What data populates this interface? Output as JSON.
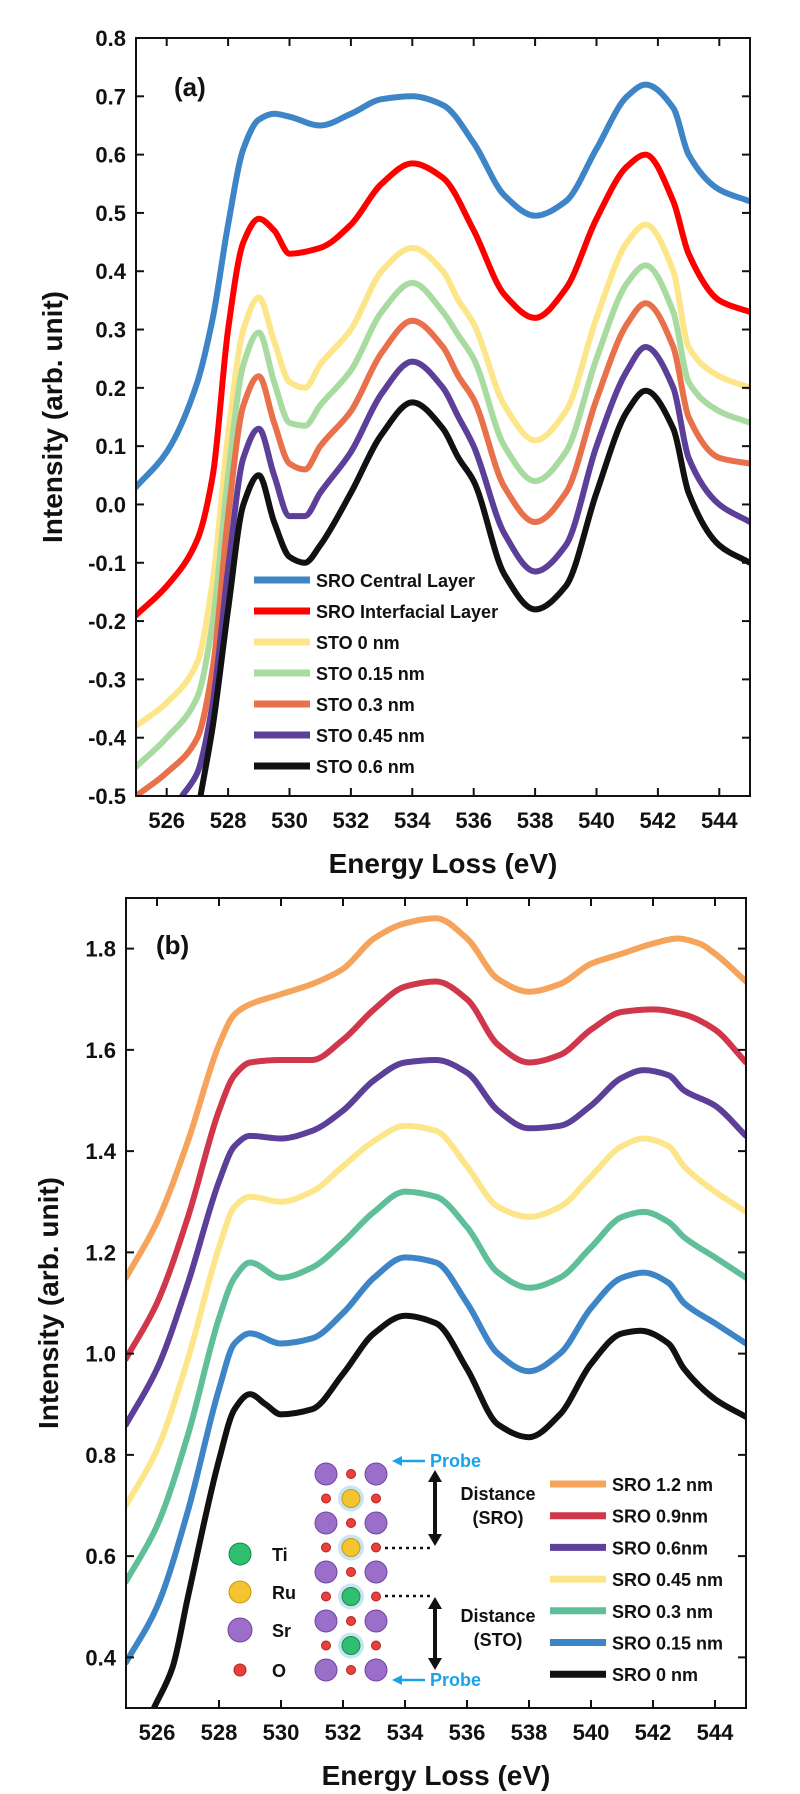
{
  "chart_data": [
    {
      "panel": "(a)",
      "type": "line",
      "xlabel": "Energy Loss (eV)",
      "ylabel": "Intensity (arb. unit)",
      "xlim": [
        525,
        545
      ],
      "ylim": [
        -0.5,
        0.8
      ],
      "xticks": [
        526,
        528,
        530,
        532,
        534,
        536,
        538,
        540,
        542,
        544
      ],
      "yticks": [
        -0.5,
        -0.4,
        -0.3,
        -0.2,
        -0.1,
        0.0,
        0.1,
        0.2,
        0.3,
        0.4,
        0.5,
        0.6,
        0.7,
        0.8
      ],
      "ytick_labels": [
        "-0.5",
        "-0.4",
        "-0.3",
        "-0.2",
        "-0.1",
        "0.0",
        "0.1",
        "0.2",
        "0.3",
        "0.4",
        "0.5",
        "0.6",
        "0.7",
        "0.8"
      ],
      "legend_position": "lower-middle",
      "series": [
        {
          "name": "SRO Central Layer",
          "color": "#3d85c6",
          "x": [
            525,
            526,
            527,
            527.5,
            528,
            528.5,
            529,
            529.5,
            530,
            531,
            532,
            533,
            534,
            535,
            536,
            537,
            538,
            539,
            540,
            541,
            541.6,
            542.5,
            543,
            544,
            545
          ],
          "y": [
            0.03,
            0.09,
            0.21,
            0.32,
            0.48,
            0.61,
            0.66,
            0.67,
            0.665,
            0.65,
            0.67,
            0.695,
            0.7,
            0.685,
            0.62,
            0.53,
            0.495,
            0.52,
            0.61,
            0.7,
            0.72,
            0.68,
            0.6,
            0.54,
            0.52
          ]
        },
        {
          "name": "SRO Interfacial Layer",
          "color": "#ff0000",
          "x": [
            525,
            526,
            527,
            527.5,
            528,
            528.5,
            529,
            529.5,
            530,
            531,
            532,
            533,
            534,
            535,
            536,
            537,
            538,
            539,
            540,
            541,
            541.6,
            542.5,
            543,
            544,
            545
          ],
          "y": [
            -0.19,
            -0.14,
            -0.06,
            0.05,
            0.3,
            0.45,
            0.49,
            0.47,
            0.43,
            0.44,
            0.48,
            0.55,
            0.585,
            0.56,
            0.47,
            0.36,
            0.32,
            0.37,
            0.49,
            0.58,
            0.6,
            0.52,
            0.43,
            0.35,
            0.33
          ]
        },
        {
          "name": "STO 0 nm",
          "color": "#fde68a",
          "x": [
            525,
            526,
            527,
            527.5,
            528,
            528.5,
            529,
            529.5,
            530,
            530.5,
            531,
            532,
            533,
            534,
            535,
            535.5,
            536,
            537,
            538,
            539,
            540,
            541,
            541.6,
            542.5,
            543,
            544,
            545
          ],
          "y": [
            -0.38,
            -0.34,
            -0.27,
            -0.13,
            0.12,
            0.3,
            0.355,
            0.28,
            0.21,
            0.2,
            0.24,
            0.3,
            0.4,
            0.44,
            0.4,
            0.35,
            0.31,
            0.17,
            0.11,
            0.16,
            0.32,
            0.45,
            0.48,
            0.4,
            0.27,
            0.22,
            0.2
          ]
        },
        {
          "name": "STO 0.15 nm",
          "color": "#a8dba0",
          "x": [
            525,
            526,
            527,
            527.5,
            528,
            528.5,
            529,
            529.5,
            530,
            530.5,
            531,
            532,
            533,
            534,
            535,
            535.5,
            536,
            537,
            538,
            539,
            540,
            541,
            541.6,
            542.5,
            543,
            544,
            545
          ],
          "y": [
            -0.45,
            -0.4,
            -0.33,
            -0.2,
            0.05,
            0.24,
            0.295,
            0.21,
            0.14,
            0.135,
            0.17,
            0.23,
            0.33,
            0.38,
            0.33,
            0.29,
            0.25,
            0.1,
            0.04,
            0.09,
            0.25,
            0.38,
            0.41,
            0.33,
            0.21,
            0.16,
            0.14
          ]
        },
        {
          "name": "STO 0.3 nm",
          "color": "#e8704a",
          "x": [
            525,
            526,
            527,
            527.5,
            528,
            528.5,
            529,
            529.5,
            530,
            530.5,
            531,
            532,
            533,
            534,
            535,
            535.5,
            536,
            537,
            538,
            539,
            540,
            541,
            541.6,
            542.5,
            543,
            544,
            545
          ],
          "y": [
            -0.5,
            -0.46,
            -0.4,
            -0.28,
            -0.02,
            0.17,
            0.22,
            0.14,
            0.07,
            0.06,
            0.1,
            0.16,
            0.26,
            0.315,
            0.27,
            0.22,
            0.18,
            0.03,
            -0.03,
            0.02,
            0.18,
            0.31,
            0.345,
            0.27,
            0.15,
            0.08,
            0.07
          ]
        },
        {
          "name": "STO 0.45 nm",
          "color": "#5b3f98",
          "x": [
            526.5,
            527,
            527.5,
            528,
            528.5,
            529,
            529.5,
            530,
            530.5,
            531,
            532,
            533,
            534,
            535,
            535.5,
            536,
            537,
            538,
            539,
            540,
            541,
            541.6,
            542.5,
            543,
            544,
            545
          ],
          "y": [
            -0.5,
            -0.46,
            -0.34,
            -0.11,
            0.08,
            0.13,
            0.05,
            -0.02,
            -0.02,
            0.02,
            0.09,
            0.19,
            0.245,
            0.2,
            0.15,
            0.1,
            -0.05,
            -0.115,
            -0.07,
            0.1,
            0.23,
            0.27,
            0.2,
            0.08,
            0.0,
            -0.03
          ]
        },
        {
          "name": "STO 0.6 nm",
          "color": "#111111",
          "x": [
            527.1,
            527.5,
            528,
            528.5,
            529,
            529.5,
            530,
            530.5,
            531,
            532,
            533,
            534,
            535,
            535.5,
            536,
            537,
            538,
            539,
            540,
            541,
            541.6,
            542.5,
            543,
            544,
            545
          ],
          "y": [
            -0.5,
            -0.38,
            -0.18,
            0.0,
            0.05,
            -0.03,
            -0.09,
            -0.1,
            -0.07,
            0.02,
            0.12,
            0.175,
            0.13,
            0.08,
            0.04,
            -0.12,
            -0.18,
            -0.14,
            0.02,
            0.16,
            0.195,
            0.13,
            0.02,
            -0.07,
            -0.1
          ]
        }
      ]
    },
    {
      "panel": "(b)",
      "type": "line",
      "xlabel": "Energy Loss (eV)",
      "ylabel": "Intensity (arb. unit)",
      "xlim": [
        525,
        545
      ],
      "ylim": [
        0.3,
        1.9
      ],
      "xticks": [
        526,
        528,
        530,
        532,
        534,
        536,
        538,
        540,
        542,
        544
      ],
      "yticks": [
        0.4,
        0.6,
        0.8,
        1.0,
        1.2,
        1.4,
        1.6,
        1.8
      ],
      "ytick_labels": [
        "0.4",
        "0.6",
        "0.8",
        "1.0",
        "1.2",
        "1.4",
        "1.6",
        "1.8"
      ],
      "legend_position": "bottom-right",
      "series": [
        {
          "name": "SRO 1.2 nm",
          "color": "#f6a35b",
          "x": [
            525,
            526,
            527,
            528,
            528.5,
            529,
            530,
            531,
            532,
            533,
            534,
            535,
            536,
            537,
            538,
            539,
            540,
            541,
            542,
            542.8,
            543.5,
            544,
            545
          ],
          "y": [
            1.15,
            1.26,
            1.42,
            1.61,
            1.67,
            1.69,
            1.71,
            1.73,
            1.76,
            1.82,
            1.85,
            1.86,
            1.82,
            1.74,
            1.715,
            1.73,
            1.77,
            1.79,
            1.81,
            1.82,
            1.81,
            1.79,
            1.735
          ]
        },
        {
          "name": "SRO 0.9nm",
          "color": "#d0374a",
          "x": [
            525,
            526,
            527,
            528,
            528.5,
            529,
            530,
            531,
            532,
            533,
            534,
            535,
            536,
            537,
            538,
            539,
            540,
            541,
            542,
            543,
            544,
            545
          ],
          "y": [
            0.99,
            1.1,
            1.27,
            1.48,
            1.55,
            1.575,
            1.58,
            1.58,
            1.62,
            1.68,
            1.725,
            1.735,
            1.7,
            1.61,
            1.575,
            1.59,
            1.64,
            1.675,
            1.68,
            1.67,
            1.64,
            1.575
          ]
        },
        {
          "name": "SRO 0.6nm",
          "color": "#5b3f98",
          "x": [
            525,
            526,
            527,
            528,
            528.5,
            529,
            530,
            531,
            532,
            533,
            534,
            535,
            536,
            537,
            538,
            539,
            540,
            541,
            541.7,
            542.5,
            543,
            544,
            545
          ],
          "y": [
            0.86,
            0.97,
            1.14,
            1.34,
            1.41,
            1.43,
            1.425,
            1.44,
            1.48,
            1.54,
            1.575,
            1.58,
            1.555,
            1.48,
            1.445,
            1.45,
            1.49,
            1.545,
            1.56,
            1.55,
            1.52,
            1.49,
            1.43
          ]
        },
        {
          "name": "SRO 0.45 nm",
          "color": "#fde68a",
          "x": [
            525,
            526,
            527,
            528,
            528.5,
            529,
            530,
            531,
            532,
            533,
            534,
            535,
            536,
            537,
            538,
            539,
            540,
            541,
            541.7,
            542.5,
            543,
            544,
            545
          ],
          "y": [
            0.7,
            0.81,
            0.99,
            1.21,
            1.29,
            1.31,
            1.3,
            1.32,
            1.37,
            1.42,
            1.45,
            1.44,
            1.37,
            1.29,
            1.27,
            1.29,
            1.35,
            1.41,
            1.425,
            1.41,
            1.37,
            1.32,
            1.28
          ]
        },
        {
          "name": "SRO 0.3 nm",
          "color": "#5fbf99",
          "x": [
            525,
            526,
            527,
            528,
            528.5,
            529,
            530,
            531,
            532,
            533,
            534,
            535,
            536,
            537,
            538,
            539,
            540,
            541,
            541.7,
            542.5,
            543,
            544,
            545
          ],
          "y": [
            0.55,
            0.66,
            0.84,
            1.07,
            1.15,
            1.18,
            1.15,
            1.17,
            1.22,
            1.28,
            1.32,
            1.31,
            1.25,
            1.16,
            1.13,
            1.15,
            1.21,
            1.27,
            1.28,
            1.26,
            1.23,
            1.19,
            1.15
          ]
        },
        {
          "name": "SRO 0.15 nm",
          "color": "#3d85c6",
          "x": [
            525,
            526,
            527,
            528,
            528.5,
            529,
            530,
            531,
            532,
            533,
            534,
            535,
            536,
            537,
            538,
            539,
            540,
            541,
            541.7,
            542.5,
            543,
            544,
            545
          ],
          "y": [
            0.39,
            0.5,
            0.69,
            0.93,
            1.02,
            1.04,
            1.02,
            1.03,
            1.08,
            1.15,
            1.19,
            1.18,
            1.1,
            1.0,
            0.965,
            1.0,
            1.09,
            1.15,
            1.16,
            1.14,
            1.1,
            1.06,
            1.02
          ]
        },
        {
          "name": "SRO 0 nm",
          "color": "#111111",
          "x": [
            525.9,
            526.5,
            527,
            528,
            528.5,
            529,
            529.5,
            530,
            531,
            532,
            533,
            534,
            535,
            536,
            537,
            538,
            539,
            540,
            541,
            541.6,
            542.5,
            543,
            544,
            545
          ],
          "y": [
            0.3,
            0.38,
            0.52,
            0.79,
            0.89,
            0.92,
            0.9,
            0.88,
            0.89,
            0.96,
            1.04,
            1.075,
            1.06,
            0.97,
            0.86,
            0.835,
            0.88,
            0.98,
            1.04,
            1.045,
            1.02,
            0.97,
            0.91,
            0.875
          ]
        }
      ]
    }
  ],
  "inset": {
    "probe_top": "Probe",
    "probe_bottom": "Probe",
    "distance_sro": [
      "Distance",
      "(SRO)"
    ],
    "distance_sto": [
      "Distance",
      "(STO)"
    ],
    "atoms": [
      {
        "label": "Ti",
        "color": "#2fbf6f"
      },
      {
        "label": "Ru",
        "color": "#f4c430"
      },
      {
        "label": "Sr",
        "color": "#9b6ec9"
      },
      {
        "label": "O",
        "color": "#e8413c"
      }
    ]
  }
}
